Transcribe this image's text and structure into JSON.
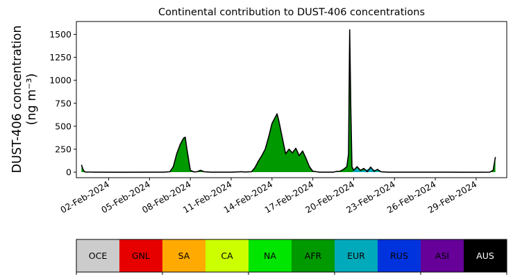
{
  "chart_data": {
    "type": "area",
    "title": "Continental contribution to DUST-406 concentrations",
    "ylabel_line1": "DUST-406 concentration",
    "ylabel_line2": "(ng m⁻³)",
    "xlabel": "",
    "x_start": "2024-01-31",
    "x_end": "2024-03-01",
    "xlim": [
      "2024-01-30T15:00",
      "2024-03-02T06:00"
    ],
    "ylim": [
      -60,
      1640
    ],
    "yticks": [
      0,
      250,
      500,
      750,
      1000,
      1250,
      1500
    ],
    "xticks": [
      "02-Feb-2024",
      "05-Feb-2024",
      "08-Feb-2024",
      "11-Feb-2024",
      "14-Feb-2024",
      "17-Feb-2024",
      "20-Feb-2024",
      "23-Feb-2024",
      "26-Feb-2024",
      "29-Feb-2024"
    ],
    "grid": false,
    "series_order": [
      "OCE",
      "GNL",
      "SA",
      "CA",
      "NA",
      "AFR",
      "EUR",
      "RUS",
      "ASI",
      "AUS"
    ],
    "colors": {
      "OCE": "#cccccc",
      "GNL": "#e60000",
      "SA": "#ffaa00",
      "CA": "#ccff00",
      "NA": "#00e600",
      "AFR": "#009900",
      "EUR": "#00aabb",
      "RUS": "#0033dd",
      "ASI": "#660099",
      "AUS": "#000000"
    },
    "total_line_color": "#000000",
    "afr_points": [
      [
        "2024-01-31T00:00",
        70
      ],
      [
        "2024-01-31T03:00",
        20
      ],
      [
        "2024-01-31T06:00",
        2
      ],
      [
        "2024-02-01T00:00",
        0
      ],
      [
        "2024-02-03T00:00",
        -1
      ],
      [
        "2024-02-05T00:00",
        0
      ],
      [
        "2024-02-06T00:00",
        0
      ],
      [
        "2024-02-06T12:00",
        5
      ],
      [
        "2024-02-06T18:00",
        60
      ],
      [
        "2024-02-07T00:00",
        200
      ],
      [
        "2024-02-07T06:00",
        300
      ],
      [
        "2024-02-07T12:00",
        370
      ],
      [
        "2024-02-07T15:00",
        380
      ],
      [
        "2024-02-07T18:00",
        250
      ],
      [
        "2024-02-08T00:00",
        20
      ],
      [
        "2024-02-08T06:00",
        3
      ],
      [
        "2024-02-08T12:00",
        5
      ],
      [
        "2024-02-08T18:00",
        20
      ],
      [
        "2024-02-09T00:00",
        5
      ],
      [
        "2024-02-09T12:00",
        0
      ],
      [
        "2024-02-10T00:00",
        0
      ],
      [
        "2024-02-11T00:00",
        0
      ],
      [
        "2024-02-11T12:00",
        3
      ],
      [
        "2024-02-11T18:00",
        5
      ],
      [
        "2024-02-12T00:00",
        2
      ],
      [
        "2024-02-12T12:00",
        5
      ],
      [
        "2024-02-12T18:00",
        50
      ],
      [
        "2024-02-13T00:00",
        120
      ],
      [
        "2024-02-13T06:00",
        180
      ],
      [
        "2024-02-13T12:00",
        250
      ],
      [
        "2024-02-13T18:00",
        380
      ],
      [
        "2024-02-14T00:00",
        530
      ],
      [
        "2024-02-14T06:00",
        600
      ],
      [
        "2024-02-14T09:00",
        635
      ],
      [
        "2024-02-14T12:00",
        560
      ],
      [
        "2024-02-14T18:00",
        380
      ],
      [
        "2024-02-15T00:00",
        200
      ],
      [
        "2024-02-15T06:00",
        250
      ],
      [
        "2024-02-15T12:00",
        210
      ],
      [
        "2024-02-15T18:00",
        260
      ],
      [
        "2024-02-16T00:00",
        180
      ],
      [
        "2024-02-16T06:00",
        230
      ],
      [
        "2024-02-16T12:00",
        150
      ],
      [
        "2024-02-16T18:00",
        60
      ],
      [
        "2024-02-17T00:00",
        10
      ],
      [
        "2024-02-17T12:00",
        0
      ],
      [
        "2024-02-18T00:00",
        0
      ],
      [
        "2024-02-18T12:00",
        0
      ],
      [
        "2024-02-18T18:00",
        8
      ],
      [
        "2024-02-19T00:00",
        10
      ],
      [
        "2024-02-19T06:00",
        30
      ],
      [
        "2024-02-19T12:00",
        60
      ],
      [
        "2024-02-19T15:00",
        200
      ],
      [
        "2024-02-19T17:00",
        1550
      ],
      [
        "2024-02-19T19:00",
        700
      ],
      [
        "2024-02-19T21:00",
        60
      ],
      [
        "2024-02-20T00:00",
        20
      ],
      [
        "2024-02-20T06:00",
        60
      ],
      [
        "2024-02-20T12:00",
        20
      ],
      [
        "2024-02-20T18:00",
        40
      ],
      [
        "2024-02-21T00:00",
        5
      ],
      [
        "2024-02-21T06:00",
        55
      ],
      [
        "2024-02-21T12:00",
        10
      ],
      [
        "2024-02-21T18:00",
        30
      ],
      [
        "2024-02-22T00:00",
        5
      ],
      [
        "2024-02-22T12:00",
        0
      ],
      [
        "2024-02-23T00:00",
        0
      ],
      [
        "2024-02-25T00:00",
        0
      ],
      [
        "2024-02-27T00:00",
        0
      ],
      [
        "2024-02-28T00:00",
        -1
      ],
      [
        "2024-02-29T00:00",
        -1
      ],
      [
        "2024-03-01T00:00",
        0
      ],
      [
        "2024-03-01T06:00",
        20
      ],
      [
        "2024-03-01T10:00",
        165
      ]
    ],
    "eur_points": [
      [
        "2024-02-19T21:00",
        0
      ],
      [
        "2024-02-20T06:00",
        45
      ],
      [
        "2024-02-20T12:00",
        10
      ],
      [
        "2024-02-21T06:00",
        40
      ],
      [
        "2024-02-21T18:00",
        15
      ],
      [
        "2024-02-22T12:00",
        0
      ]
    ],
    "total_points": [
      [
        "2024-01-31T00:00",
        80
      ],
      [
        "2024-01-31T03:00",
        25
      ],
      [
        "2024-01-31T06:00",
        2
      ],
      [
        "2024-02-01T00:00",
        0
      ],
      [
        "2024-02-03T00:00",
        -1
      ],
      [
        "2024-02-05T00:00",
        0
      ],
      [
        "2024-02-06T00:00",
        0
      ],
      [
        "2024-02-06T12:00",
        5
      ],
      [
        "2024-02-06T18:00",
        60
      ],
      [
        "2024-02-07T00:00",
        200
      ],
      [
        "2024-02-07T06:00",
        300
      ],
      [
        "2024-02-07T12:00",
        370
      ],
      [
        "2024-02-07T15:00",
        380
      ],
      [
        "2024-02-07T18:00",
        250
      ],
      [
        "2024-02-08T00:00",
        20
      ],
      [
        "2024-02-08T06:00",
        3
      ],
      [
        "2024-02-08T12:00",
        5
      ],
      [
        "2024-02-08T18:00",
        20
      ],
      [
        "2024-02-09T00:00",
        5
      ],
      [
        "2024-02-09T12:00",
        0
      ],
      [
        "2024-02-10T00:00",
        0
      ],
      [
        "2024-02-11T00:00",
        0
      ],
      [
        "2024-02-11T12:00",
        3
      ],
      [
        "2024-02-11T18:00",
        5
      ],
      [
        "2024-02-12T00:00",
        2
      ],
      [
        "2024-02-12T12:00",
        5
      ],
      [
        "2024-02-12T18:00",
        50
      ],
      [
        "2024-02-13T00:00",
        120
      ],
      [
        "2024-02-13T06:00",
        180
      ],
      [
        "2024-02-13T12:00",
        250
      ],
      [
        "2024-02-13T18:00",
        380
      ],
      [
        "2024-02-14T00:00",
        530
      ],
      [
        "2024-02-14T06:00",
        600
      ],
      [
        "2024-02-14T09:00",
        635
      ],
      [
        "2024-02-14T12:00",
        560
      ],
      [
        "2024-02-14T18:00",
        380
      ],
      [
        "2024-02-15T00:00",
        200
      ],
      [
        "2024-02-15T06:00",
        250
      ],
      [
        "2024-02-15T12:00",
        210
      ],
      [
        "2024-02-15T18:00",
        260
      ],
      [
        "2024-02-16T00:00",
        180
      ],
      [
        "2024-02-16T06:00",
        230
      ],
      [
        "2024-02-16T12:00",
        150
      ],
      [
        "2024-02-16T18:00",
        60
      ],
      [
        "2024-02-17T00:00",
        10
      ],
      [
        "2024-02-17T12:00",
        0
      ],
      [
        "2024-02-18T00:00",
        0
      ],
      [
        "2024-02-18T12:00",
        0
      ],
      [
        "2024-02-18T18:00",
        8
      ],
      [
        "2024-02-19T00:00",
        10
      ],
      [
        "2024-02-19T06:00",
        30
      ],
      [
        "2024-02-19T12:00",
        60
      ],
      [
        "2024-02-19T15:00",
        200
      ],
      [
        "2024-02-19T17:00",
        1550
      ],
      [
        "2024-02-19T19:00",
        700
      ],
      [
        "2024-02-19T21:00",
        60
      ],
      [
        "2024-02-20T00:00",
        20
      ],
      [
        "2024-02-20T06:00",
        60
      ],
      [
        "2024-02-20T12:00",
        20
      ],
      [
        "2024-02-20T18:00",
        40
      ],
      [
        "2024-02-21T00:00",
        5
      ],
      [
        "2024-02-21T06:00",
        55
      ],
      [
        "2024-02-21T12:00",
        10
      ],
      [
        "2024-02-21T18:00",
        30
      ],
      [
        "2024-02-22T00:00",
        5
      ],
      [
        "2024-02-22T12:00",
        0
      ],
      [
        "2024-02-23T00:00",
        0
      ],
      [
        "2024-02-25T00:00",
        0
      ],
      [
        "2024-02-27T00:00",
        0
      ],
      [
        "2024-02-28T00:00",
        -1
      ],
      [
        "2024-02-29T00:00",
        -1
      ],
      [
        "2024-03-01T00:00",
        0
      ],
      [
        "2024-03-01T06:00",
        20
      ],
      [
        "2024-03-01T10:00",
        165
      ]
    ]
  },
  "legend": {
    "entries": [
      {
        "label": "OCE",
        "color": "#cccccc",
        "text_color": "#000000"
      },
      {
        "label": "GNL",
        "color": "#e60000",
        "text_color": "#000000"
      },
      {
        "label": "SA",
        "color": "#ffaa00",
        "text_color": "#000000"
      },
      {
        "label": "CA",
        "color": "#ccff00",
        "text_color": "#000000"
      },
      {
        "label": "NA",
        "color": "#00e600",
        "text_color": "#000000"
      },
      {
        "label": "AFR",
        "color": "#009900",
        "text_color": "#000000"
      },
      {
        "label": "EUR",
        "color": "#00aabb",
        "text_color": "#000000"
      },
      {
        "label": "RUS",
        "color": "#0033dd",
        "text_color": "#000000"
      },
      {
        "label": "ASI",
        "color": "#660099",
        "text_color": "#000000"
      },
      {
        "label": "AUS",
        "color": "#000000",
        "text_color": "#ffffff"
      }
    ]
  }
}
